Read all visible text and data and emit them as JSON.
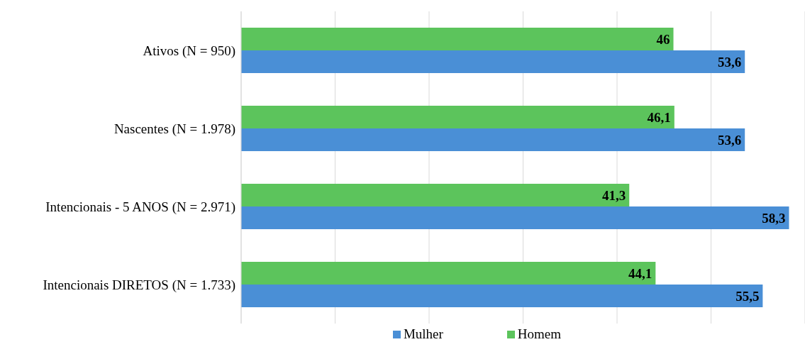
{
  "chart_data": {
    "type": "bar",
    "orientation": "horizontal",
    "categories": [
      "Ativos (N = 950)",
      "Nascentes (N = 1.978)",
      "Intencionais - 5 ANOS (N = 2.971)",
      "Intencionais DIRETOS  (N = 1.733)"
    ],
    "series": [
      {
        "name": "Mulher",
        "color": "#4a8fd6",
        "values": [
          53.6,
          53.6,
          58.3,
          55.5
        ],
        "value_labels": [
          "53,6",
          "53,6",
          "58,3",
          "55,5"
        ]
      },
      {
        "name": "Homem",
        "color": "#5cc45c",
        "values": [
          46,
          46.1,
          41.3,
          44.1
        ],
        "value_labels": [
          "46",
          "46,1",
          "41,3",
          "44,1"
        ]
      }
    ],
    "xlim": [
      0,
      60
    ],
    "tick_labels": "y",
    "grid": "x",
    "legend": "bottom"
  }
}
